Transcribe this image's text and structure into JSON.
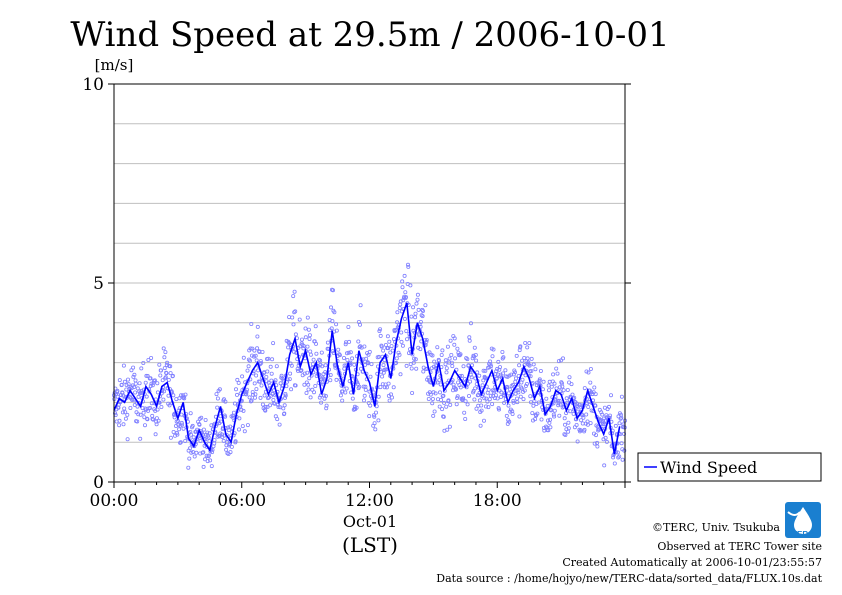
{
  "chart_data": {
    "type": "scatter",
    "title": "Wind Speed at 29.5m / 2006-10-01",
    "ylabel": "[m/s]",
    "xlabel": "(LST)",
    "date_label": "Oct-01",
    "ylim": [
      0,
      10
    ],
    "xlim_hours": [
      0,
      24
    ],
    "yticks": [
      0,
      5,
      10
    ],
    "ygrid": [
      1,
      2,
      3,
      4,
      5,
      6,
      7,
      8,
      9
    ],
    "xticks": [
      {
        "hour": 0,
        "label": "00:00"
      },
      {
        "hour": 6,
        "label": "06:00"
      },
      {
        "hour": 12,
        "label": "12:00"
      },
      {
        "hour": 18,
        "label": "18:00"
      }
    ],
    "legend": {
      "label": "Wind Speed",
      "position": "right"
    },
    "colors": {
      "line": "#0000ff",
      "points": "#8080ff",
      "grid": "#bfbfbf",
      "logo": "#1a7fd0"
    },
    "series": [
      {
        "name": "Wind Speed",
        "hours": [
          0.0,
          0.25,
          0.5,
          0.75,
          1.0,
          1.25,
          1.5,
          1.75,
          2.0,
          2.25,
          2.5,
          2.75,
          3.0,
          3.25,
          3.5,
          3.75,
          4.0,
          4.25,
          4.5,
          4.75,
          5.0,
          5.25,
          5.5,
          5.75,
          6.0,
          6.25,
          6.5,
          6.75,
          7.0,
          7.25,
          7.5,
          7.75,
          8.0,
          8.25,
          8.5,
          8.75,
          9.0,
          9.25,
          9.5,
          9.75,
          10.0,
          10.25,
          10.5,
          10.75,
          11.0,
          11.25,
          11.5,
          11.75,
          12.0,
          12.25,
          12.5,
          12.75,
          13.0,
          13.25,
          13.5,
          13.75,
          14.0,
          14.25,
          14.5,
          14.75,
          15.0,
          15.25,
          15.5,
          15.75,
          16.0,
          16.25,
          16.5,
          16.75,
          17.0,
          17.25,
          17.5,
          17.75,
          18.0,
          18.25,
          18.5,
          18.75,
          19.0,
          19.25,
          19.5,
          19.75,
          20.0,
          20.25,
          20.5,
          20.75,
          21.0,
          21.25,
          21.5,
          21.75,
          22.0,
          22.25,
          22.5,
          22.75,
          23.0,
          23.25,
          23.5,
          23.75
        ],
        "values": [
          1.8,
          2.1,
          2.0,
          2.3,
          2.1,
          1.9,
          2.4,
          2.2,
          1.9,
          2.4,
          2.5,
          2.0,
          1.6,
          2.0,
          1.1,
          0.9,
          1.3,
          1.0,
          0.8,
          1.4,
          1.9,
          1.2,
          1.0,
          1.7,
          2.2,
          2.5,
          2.8,
          3.0,
          2.6,
          2.2,
          2.5,
          2.0,
          2.4,
          3.2,
          3.6,
          2.9,
          3.3,
          2.7,
          3.0,
          2.2,
          2.6,
          3.8,
          2.9,
          2.4,
          3.0,
          2.2,
          3.3,
          2.8,
          2.5,
          1.9,
          3.0,
          3.2,
          2.6,
          3.5,
          4.1,
          4.5,
          3.2,
          4.0,
          3.6,
          2.9,
          2.4,
          3.0,
          2.3,
          2.5,
          2.8,
          2.6,
          2.4,
          2.9,
          2.7,
          2.2,
          2.5,
          2.8,
          2.3,
          2.6,
          2.0,
          2.3,
          2.5,
          2.9,
          2.6,
          2.1,
          2.4,
          1.7,
          1.9,
          2.3,
          2.2,
          1.8,
          2.1,
          1.6,
          1.8,
          2.3,
          1.9,
          1.5,
          1.2,
          1.6,
          0.7,
          1.4
        ]
      }
    ]
  },
  "footer": {
    "credit": "©TERC, Univ. Tsukuba",
    "observed": "Observed at TERC Tower site",
    "created": "Created Automatically at 2006-10-01/23:55:57",
    "source": "Data source : /home/hojyo/new/TERC-data/sorted_data/FLUX.10s.dat",
    "logo_text": "TERC",
    "logo_icon": "water-drop-logo-icon"
  }
}
